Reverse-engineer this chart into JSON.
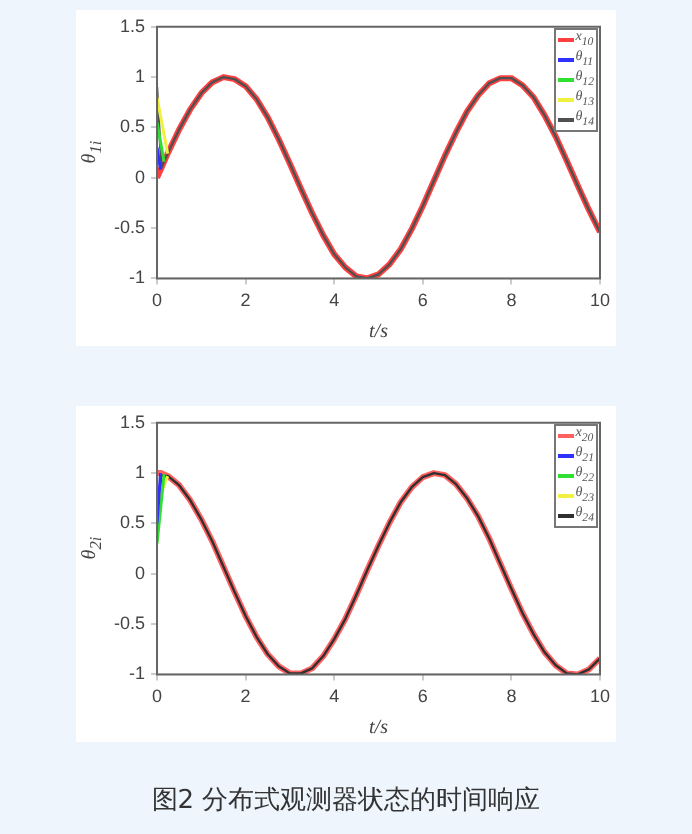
{
  "chart_data": [
    {
      "type": "line",
      "xlabel": "t/s",
      "ylabel": "θ$_{1i}$",
      "x": [
        0,
        0.1,
        0.25,
        0.5,
        0.75,
        1,
        1.25,
        1.5,
        1.75,
        2,
        2.25,
        2.5,
        2.75,
        3,
        3.25,
        3.5,
        3.75,
        4,
        4.25,
        4.5,
        4.75,
        5,
        5.25,
        5.5,
        5.75,
        6,
        6.25,
        6.5,
        6.75,
        7,
        7.25,
        7.5,
        7.75,
        8,
        8.25,
        8.5,
        8.75,
        9,
        9.25,
        9.5,
        9.75,
        10
      ],
      "xlim": [
        0,
        10
      ],
      "xticks": [
        0,
        2,
        4,
        6,
        8,
        10
      ],
      "ylim": [
        -1,
        1.5
      ],
      "yticks": [
        -1,
        -0.5,
        0,
        0.5,
        1,
        1.5
      ],
      "legend": "top right",
      "series": [
        {
          "name": "x$_{10}$",
          "color": "#ff4040",
          "values": [
            0,
            0.1,
            0.25,
            0.48,
            0.68,
            0.84,
            0.95,
            1,
            0.98,
            0.91,
            0.78,
            0.6,
            0.38,
            0.14,
            -0.11,
            -0.35,
            -0.57,
            -0.76,
            -0.89,
            -0.98,
            -1,
            -0.96,
            -0.86,
            -0.71,
            -0.51,
            -0.28,
            -0.03,
            0.22,
            0.45,
            0.66,
            0.82,
            0.94,
            0.99,
            0.99,
            0.92,
            0.8,
            0.62,
            0.41,
            0.17,
            -0.08,
            -0.32,
            -0.54
          ]
        },
        {
          "name": "θ$_{11}$",
          "color": "#3030ff",
          "x": [
            0,
            0.08
          ],
          "values": [
            0.3,
            0.08
          ]
        },
        {
          "name": "θ$_{12}$",
          "color": "#30e030",
          "x": [
            0,
            0.16
          ],
          "values": [
            0.55,
            0.16
          ]
        },
        {
          "name": "θ$_{13}$",
          "color": "#f0f040",
          "x": [
            0,
            0.24
          ],
          "values": [
            0.8,
            0.24
          ]
        },
        {
          "name": "θ$_{14}$",
          "color": "#505050",
          "values": [
            0.9,
            0.1,
            0.25,
            0.48,
            0.68,
            0.84,
            0.95,
            1,
            0.98,
            0.91,
            0.78,
            0.6,
            0.38,
            0.14,
            -0.11,
            -0.35,
            -0.57,
            -0.76,
            -0.89,
            -0.98,
            -1,
            -0.96,
            -0.86,
            -0.71,
            -0.51,
            -0.28,
            -0.03,
            0.22,
            0.45,
            0.66,
            0.82,
            0.94,
            0.99,
            0.99,
            0.92,
            0.8,
            0.62,
            0.41,
            0.17,
            -0.08,
            -0.32,
            -0.54
          ]
        }
      ]
    },
    {
      "type": "line",
      "xlabel": "t/s",
      "ylabel": "θ$_{2i}$",
      "x": [
        0,
        0.1,
        0.25,
        0.5,
        0.75,
        1,
        1.25,
        1.5,
        1.75,
        2,
        2.25,
        2.5,
        2.75,
        3,
        3.25,
        3.5,
        3.75,
        4,
        4.25,
        4.5,
        4.75,
        5,
        5.25,
        5.5,
        5.75,
        6,
        6.25,
        6.5,
        6.75,
        7,
        7.25,
        7.5,
        7.75,
        8,
        8.25,
        8.5,
        8.75,
        9,
        9.25,
        9.5,
        9.75,
        10
      ],
      "xlim": [
        0,
        10
      ],
      "xticks": [
        0,
        2,
        4,
        6,
        8,
        10
      ],
      "ylim": [
        -1,
        1.5
      ],
      "yticks": [
        -1,
        -0.5,
        0,
        0.5,
        1,
        1.5
      ],
      "legend": "top right",
      "annotations": [
        "图2 分布式观测器状态的时间响应"
      ],
      "series": [
        {
          "name": "x$_{20}$",
          "color": "#ff6060",
          "values": [
            1,
            1,
            0.97,
            0.88,
            0.73,
            0.54,
            0.32,
            0.07,
            -0.18,
            -0.42,
            -0.63,
            -0.8,
            -0.92,
            -0.99,
            -0.99,
            -0.94,
            -0.82,
            -0.65,
            -0.45,
            -0.21,
            0.04,
            0.28,
            0.51,
            0.71,
            0.86,
            0.96,
            1,
            0.98,
            0.89,
            0.75,
            0.57,
            0.35,
            0.1,
            -0.15,
            -0.39,
            -0.6,
            -0.78,
            -0.91,
            -0.99,
            -1,
            -0.95,
            -0.84
          ]
        },
        {
          "name": "θ$_{21}$",
          "color": "#3030ff",
          "x": [
            0,
            0.08
          ],
          "values": [
            0.5,
            1
          ]
        },
        {
          "name": "θ$_{22}$",
          "color": "#30e030",
          "x": [
            0,
            0.16
          ],
          "values": [
            0.3,
            0.99
          ]
        },
        {
          "name": "θ$_{23}$",
          "color": "#f0f040",
          "x": [
            0,
            0.24
          ],
          "values": [
            0.7,
            0.97
          ]
        },
        {
          "name": "θ$_{24}$",
          "color": "#303030",
          "values": [
            0.6,
            0.98,
            0.97,
            0.88,
            0.73,
            0.54,
            0.32,
            0.07,
            -0.18,
            -0.42,
            -0.63,
            -0.8,
            -0.92,
            -0.99,
            -0.99,
            -0.94,
            -0.82,
            -0.65,
            -0.45,
            -0.21,
            0.04,
            0.28,
            0.51,
            0.71,
            0.86,
            0.96,
            1,
            0.98,
            0.89,
            0.75,
            0.57,
            0.35,
            0.1,
            -0.15,
            -0.39,
            -0.6,
            -0.78,
            -0.91,
            -0.99,
            -1,
            -0.95,
            -0.84
          ]
        }
      ]
    }
  ]
}
